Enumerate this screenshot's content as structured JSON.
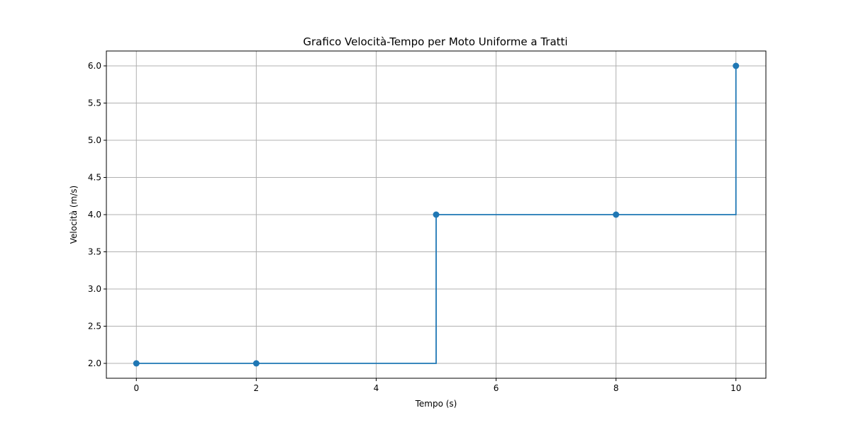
{
  "chart_data": {
    "type": "line",
    "title": "Grafico Velocità-Tempo per Moto Uniforme a Tratti",
    "xlabel": "Tempo (s)",
    "ylabel": "Velocità (m/s)",
    "xlim": [
      -0.5,
      10.5
    ],
    "ylim": [
      1.8,
      6.2
    ],
    "x_ticks": [
      0,
      2,
      4,
      6,
      8,
      10
    ],
    "y_ticks": [
      2.0,
      2.5,
      3.0,
      3.5,
      4.0,
      4.5,
      5.0,
      5.5,
      6.0
    ],
    "x_tick_labels": [
      "0",
      "2",
      "4",
      "6",
      "8",
      "10"
    ],
    "y_tick_labels": [
      "2.0",
      "2.5",
      "3.0",
      "3.5",
      "4.0",
      "4.5",
      "5.0",
      "5.5",
      "6.0"
    ],
    "grid": true,
    "step": "post",
    "markers": "circle",
    "series": [
      {
        "color": "#1f77b4",
        "x": [
          0,
          2,
          5,
          8,
          10
        ],
        "y": [
          2,
          2,
          4,
          4,
          6
        ]
      }
    ]
  }
}
